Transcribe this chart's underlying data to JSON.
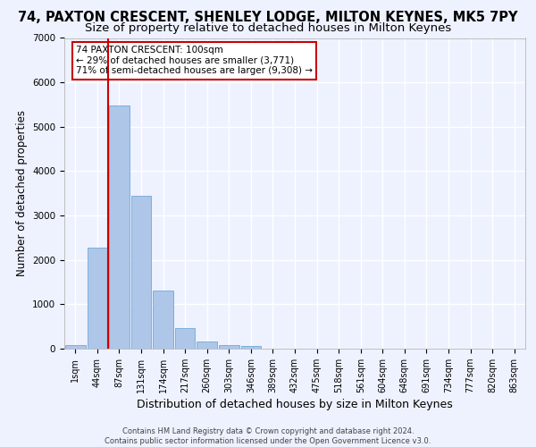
{
  "title": "74, PAXTON CRESCENT, SHENLEY LODGE, MILTON KEYNES, MK5 7PY",
  "subtitle": "Size of property relative to detached houses in Milton Keynes",
  "xlabel": "Distribution of detached houses by size in Milton Keynes",
  "ylabel": "Number of detached properties",
  "footer_line1": "Contains HM Land Registry data © Crown copyright and database right 2024.",
  "footer_line2": "Contains public sector information licensed under the Open Government Licence v3.0.",
  "bar_labels": [
    "1sqm",
    "44sqm",
    "87sqm",
    "131sqm",
    "174sqm",
    "217sqm",
    "260sqm",
    "303sqm",
    "346sqm",
    "389sqm",
    "432sqm",
    "475sqm",
    "518sqm",
    "561sqm",
    "604sqm",
    "648sqm",
    "691sqm",
    "734sqm",
    "777sqm",
    "820sqm",
    "863sqm"
  ],
  "bar_values": [
    75,
    2280,
    5480,
    3440,
    1300,
    460,
    160,
    90,
    55,
    0,
    0,
    0,
    0,
    0,
    0,
    0,
    0,
    0,
    0,
    0,
    0
  ],
  "bar_color": "#aec6e8",
  "bar_edge_color": "#5a9fd4",
  "ylim": [
    0,
    7000
  ],
  "yticks": [
    0,
    1000,
    2000,
    3000,
    4000,
    5000,
    6000,
    7000
  ],
  "property_bin_index": 2,
  "vline_color": "#cc0000",
  "annotation_box_text": "74 PAXTON CRESCENT: 100sqm\n← 29% of detached houses are smaller (3,771)\n71% of semi-detached houses are larger (9,308) →",
  "background_color": "#eef2ff",
  "grid_color": "#ffffff",
  "title_fontsize": 10.5,
  "subtitle_fontsize": 9.5,
  "axis_label_fontsize": 8.5,
  "tick_fontsize": 7,
  "annotation_fontsize": 7.5,
  "footer_fontsize": 6.0
}
